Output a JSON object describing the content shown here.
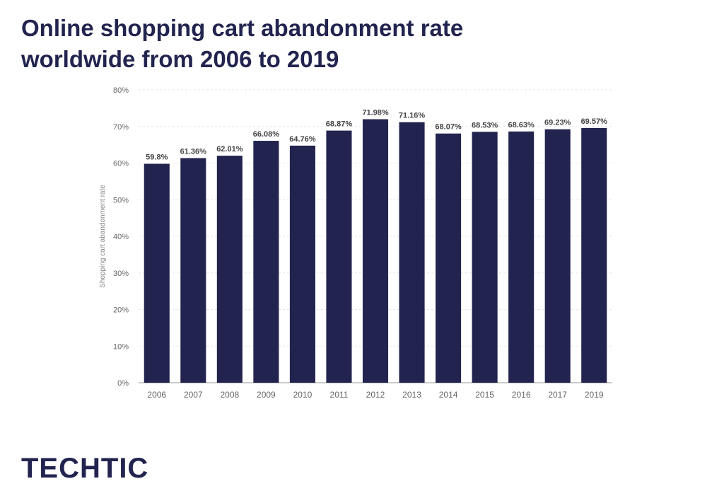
{
  "header": {
    "title_line1": "Online shopping cart abandonment rate",
    "title_line2": "worldwide from 2006 to 2019"
  },
  "brand": {
    "logo_text": "TECHTIC"
  },
  "colors": {
    "bar": "#22244f",
    "title": "#22244f",
    "grid": "#e6e6e6",
    "axis_text": "#666666",
    "label_text": "#444444"
  },
  "chart_data": {
    "type": "bar",
    "title": "Online shopping cart abandonment rate worldwide from 2006 to 2019",
    "xlabel": "",
    "ylabel": "Shopping cart abandonment rate",
    "ylim": [
      0,
      80
    ],
    "yticks": [
      0,
      10,
      20,
      30,
      40,
      50,
      60,
      70,
      80
    ],
    "ytick_labels": [
      "0%",
      "10%",
      "20%",
      "30%",
      "40%",
      "50%",
      "60%",
      "70%",
      "80%"
    ],
    "categories": [
      "2006",
      "2007",
      "2008",
      "2009",
      "2010",
      "2011",
      "2012",
      "2013",
      "2014",
      "2015",
      "2016",
      "2017",
      "2019"
    ],
    "values": [
      59.8,
      61.36,
      62.01,
      66.08,
      64.76,
      68.87,
      71.98,
      71.16,
      68.07,
      68.53,
      68.63,
      69.23,
      69.57
    ],
    "data_labels": [
      "59.8%",
      "61.36%",
      "62.01%",
      "66.08%",
      "64.76%",
      "68.87%",
      "71.98%",
      "71.16%",
      "68.07%",
      "68.53%",
      "68.63%",
      "69.23%",
      "69.57%"
    ],
    "grid": true,
    "legend": "none"
  }
}
